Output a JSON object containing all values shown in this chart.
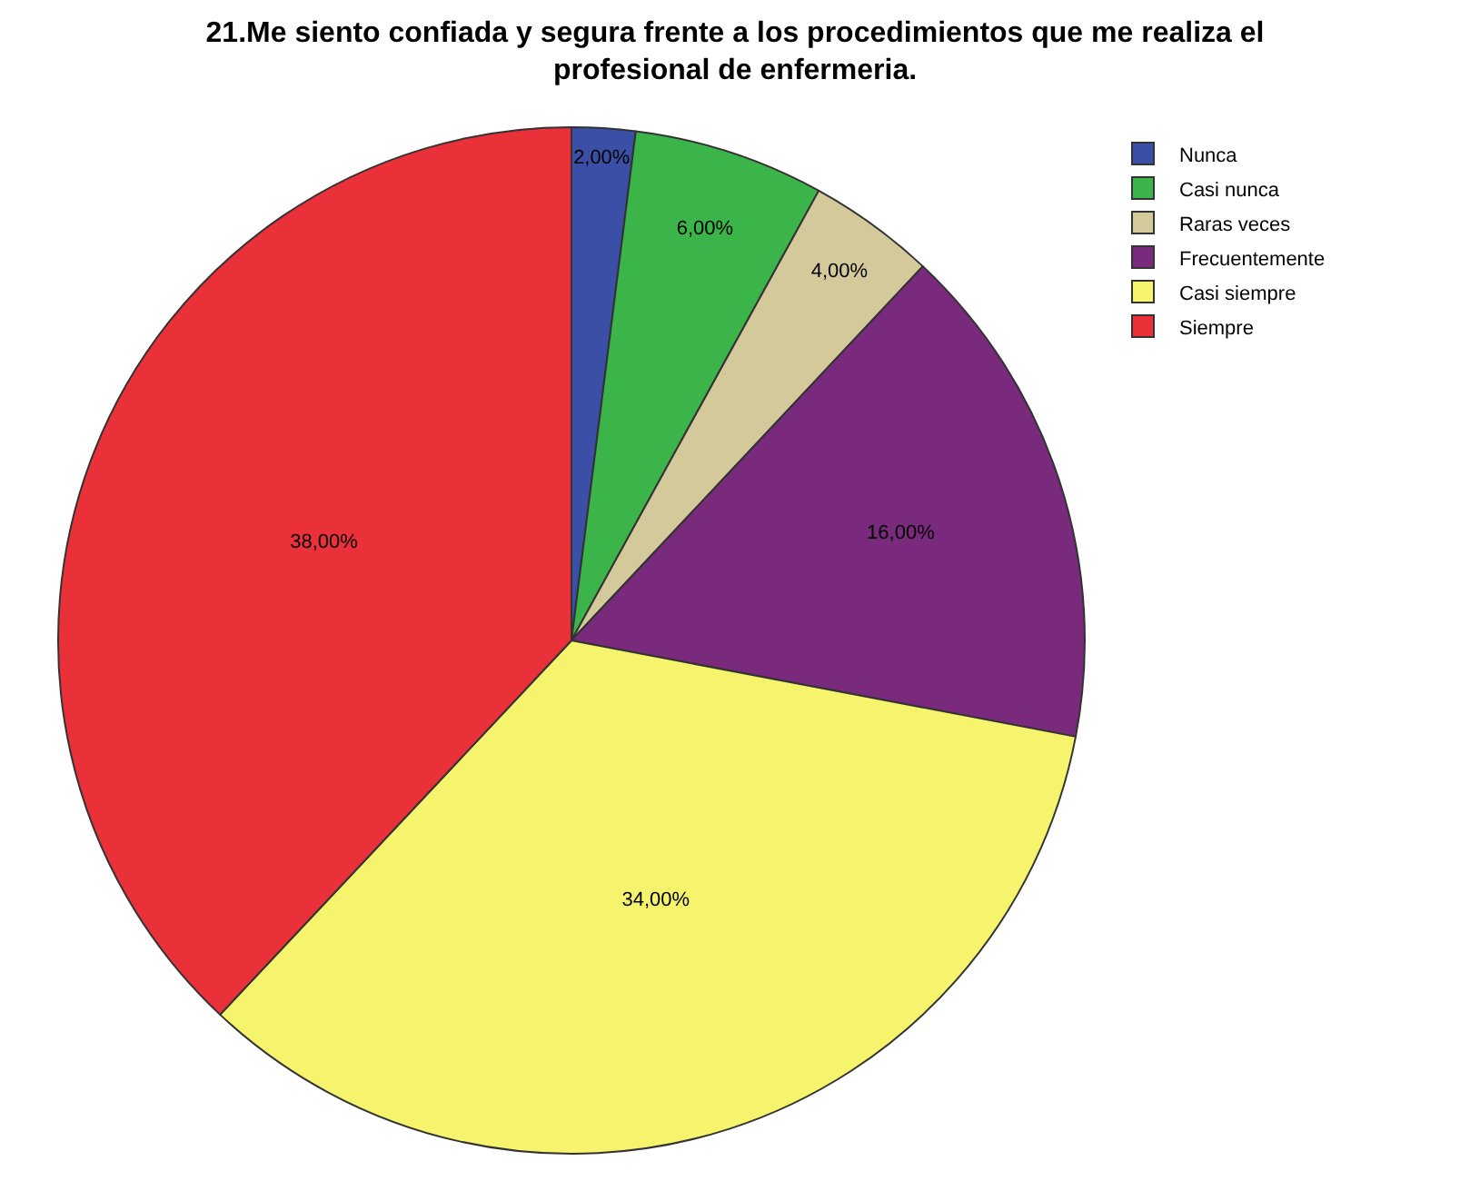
{
  "chart_data": {
    "type": "pie",
    "title": "21.Me siento confiada y segura frente a los procedimientos que me realiza el profesional de enfermeria.",
    "categories": [
      "Nunca",
      "Casi nunca",
      "Raras veces",
      "Frecuentemente",
      "Casi siempre",
      "Siempre"
    ],
    "values": [
      2,
      6,
      4,
      16,
      34,
      38
    ],
    "colors": [
      "#3b4fa6",
      "#3bb54a",
      "#d4c99b",
      "#7a2a7c",
      "#f6f46c",
      "#ea3038"
    ],
    "value_labels": [
      "2,00%",
      "6,00%",
      "4,00%",
      "16,00%",
      "34,00%",
      "38,00%"
    ],
    "legend": "top right"
  }
}
